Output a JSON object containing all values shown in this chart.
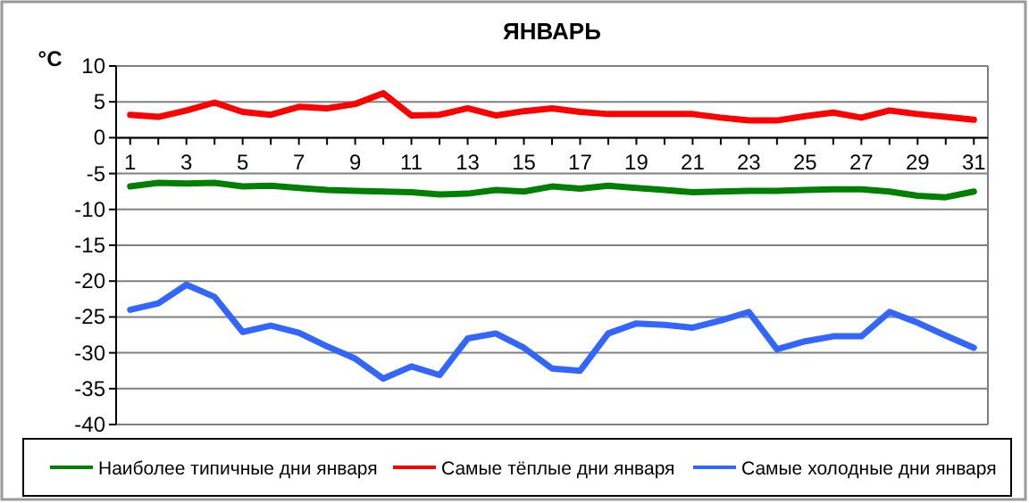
{
  "chart_data": {
    "type": "line",
    "title": "ЯНВАРЬ",
    "ylabel": "°C",
    "x": [
      1,
      2,
      3,
      4,
      5,
      6,
      7,
      8,
      9,
      10,
      11,
      12,
      13,
      14,
      15,
      16,
      17,
      18,
      19,
      20,
      21,
      22,
      23,
      24,
      25,
      26,
      27,
      28,
      29,
      30,
      31
    ],
    "xlim": [
      0.5,
      31.5
    ],
    "xticks": [
      1,
      {
        "value": 2,
        "label": null
      },
      3,
      {
        "value": 4,
        "label": null
      },
      5,
      {
        "value": 6,
        "label": null
      },
      7,
      {
        "value": 8,
        "label": null
      },
      9,
      {
        "value": 10,
        "label": null
      },
      11,
      {
        "value": 12,
        "label": null
      },
      13,
      {
        "value": 14,
        "label": null
      },
      15,
      {
        "value": 16,
        "label": null
      },
      17,
      {
        "value": 18,
        "label": null
      },
      19,
      {
        "value": 20,
        "label": null
      },
      21,
      {
        "value": 22,
        "label": null
      },
      23,
      {
        "value": 24,
        "label": null
      },
      25,
      {
        "value": 26,
        "label": null
      },
      27,
      {
        "value": 28,
        "label": null
      },
      29,
      {
        "value": 30,
        "label": null
      },
      31
    ],
    "ylim": [
      -40,
      10
    ],
    "yticks": [
      -40,
      -35,
      -30,
      -25,
      -20,
      -15,
      -10,
      -5,
      0,
      5,
      10
    ],
    "grid": "y",
    "legend": "bottom",
    "marker": "none",
    "line_style": "solid",
    "series": [
      {
        "name": "Наиболее типичные дни января",
        "color": "#008000",
        "values": [
          -6.8,
          -6.3,
          -6.4,
          -6.3,
          -6.8,
          -6.7,
          -7.0,
          -7.3,
          -7.4,
          -7.5,
          -7.6,
          -7.9,
          -7.8,
          -7.3,
          -7.5,
          -6.8,
          -7.1,
          -6.7,
          -7.0,
          -7.3,
          -7.6,
          -7.5,
          -7.4,
          -7.4,
          -7.3,
          -7.2,
          -7.2,
          -7.5,
          -8.1,
          -8.3,
          -7.5
        ]
      },
      {
        "name": "Самые тёплые дни января",
        "color": "#ff0000",
        "values": [
          3.2,
          2.9,
          3.8,
          4.9,
          3.6,
          3.2,
          4.3,
          4.1,
          4.7,
          6.2,
          3.1,
          3.2,
          4.1,
          3.1,
          3.7,
          4.1,
          3.6,
          3.3,
          3.3,
          3.3,
          3.3,
          2.8,
          2.4,
          2.4,
          3.0,
          3.5,
          2.8,
          3.8,
          3.3,
          2.9,
          2.5
        ]
      },
      {
        "name": "Самые холодные дни января",
        "color": "#3366ff",
        "values": [
          -24.0,
          -23.1,
          -20.5,
          -22.2,
          -27.1,
          -26.2,
          -27.2,
          -29.1,
          -30.8,
          -33.6,
          -31.9,
          -33.1,
          -28.0,
          -27.3,
          -29.3,
          -32.2,
          -32.5,
          -27.3,
          -25.9,
          -26.1,
          -26.5,
          -25.5,
          -24.3,
          -29.5,
          -28.4,
          -27.7,
          -27.7,
          -24.3,
          -25.8,
          -27.6,
          -29.3
        ]
      }
    ]
  }
}
